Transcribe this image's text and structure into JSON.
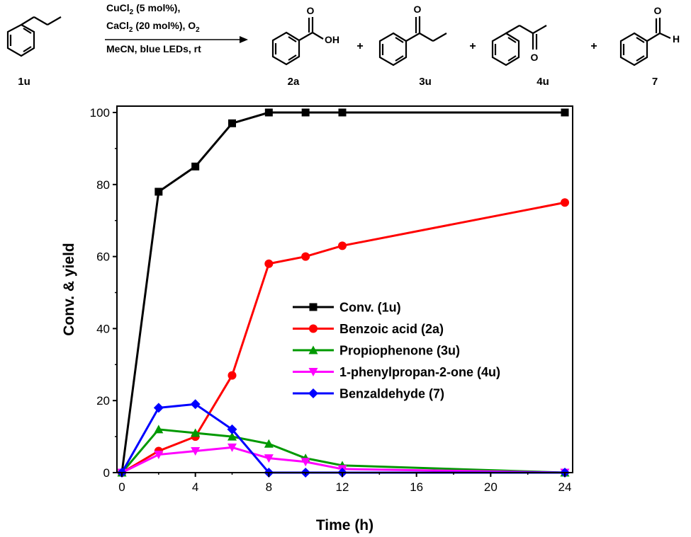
{
  "scheme": {
    "reagents": {
      "line1_main": "CuCl",
      "line1_sub": "2",
      "line1_rest": " (5 mol%),",
      "line2_main": "CaCl",
      "line2_sub": "2",
      "line2_rest": " (20 mol%), O",
      "line2_sub2": "2",
      "line3": "MeCN, blue LEDs, rt"
    },
    "plus": "+",
    "compounds": [
      {
        "id": "1u",
        "label": "1u"
      },
      {
        "id": "2a",
        "label": "2a",
        "atoms": [
          "O",
          "OH"
        ]
      },
      {
        "id": "3u",
        "label": "3u",
        "atoms": [
          "O"
        ]
      },
      {
        "id": "4u",
        "label": "4u",
        "atoms": [
          "O"
        ]
      },
      {
        "id": "7",
        "label": "7",
        "atoms": [
          "O",
          "H"
        ]
      }
    ]
  },
  "chart_data": {
    "type": "line",
    "title": "",
    "xlabel": "Time (h)",
    "ylabel": "Conv. & yield",
    "x_ticks": [
      0,
      4,
      8,
      12,
      16,
      20,
      24
    ],
    "y_ticks": [
      0,
      20,
      40,
      60,
      80,
      100
    ],
    "ylim": [
      0,
      100
    ],
    "x_axis_note": "non-linear x axis: 0-12 h expanded, 12-24 h compressed",
    "legend_position": "center-right",
    "series": [
      {
        "name": "Conv. (1u)",
        "color": "#000000",
        "marker": "square",
        "x": [
          0,
          2,
          4,
          6,
          8,
          10,
          12,
          24
        ],
        "y": [
          0,
          78,
          85,
          97,
          100,
          100,
          100,
          100
        ]
      },
      {
        "name": "Benzoic acid (2a)",
        "color": "#ff0000",
        "marker": "circle",
        "x": [
          0,
          2,
          4,
          6,
          8,
          10,
          12,
          24
        ],
        "y": [
          0,
          6,
          10,
          27,
          58,
          60,
          63,
          75
        ]
      },
      {
        "name": "Propiophenone (3u)",
        "color": "#009900",
        "marker": "triangle-up",
        "x": [
          0,
          2,
          4,
          6,
          8,
          10,
          12,
          24
        ],
        "y": [
          0,
          12,
          11,
          10,
          8,
          4,
          2,
          0
        ]
      },
      {
        "name": "1-phenylpropan-2-one (4u)",
        "color": "#ff00ff",
        "marker": "triangle-down",
        "x": [
          0,
          2,
          4,
          6,
          8,
          10,
          12,
          24
        ],
        "y": [
          0,
          5,
          6,
          7,
          4,
          3,
          1,
          0
        ]
      },
      {
        "name": "Benzaldehyde (7)",
        "color": "#0000ff",
        "marker": "diamond",
        "x": [
          0,
          2,
          4,
          6,
          8,
          10,
          12,
          24
        ],
        "y": [
          0,
          18,
          19,
          12,
          0,
          0,
          0,
          0
        ]
      }
    ]
  }
}
